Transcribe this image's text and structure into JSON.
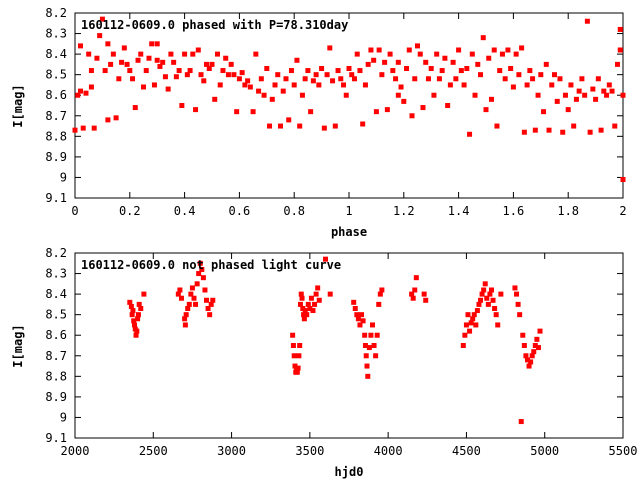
{
  "chart_data": [
    {
      "type": "scatter",
      "title": "160112-0609.0 phased with P=78.310day",
      "xlabel": "phase",
      "ylabel": "I[mag]",
      "xlim": [
        0,
        2
      ],
      "ylim": [
        9.1,
        8.2
      ],
      "y_inverted": true,
      "x_ticks": [
        "0",
        "0.2",
        "0.4",
        "0.6",
        "0.8",
        "1",
        "1.2",
        "1.4",
        "1.6",
        "1.8",
        "2"
      ],
      "x_tick_values": [
        0,
        0.2,
        0.4,
        0.6,
        0.8,
        1.0,
        1.2,
        1.4,
        1.6,
        1.8,
        2.0
      ],
      "y_ticks": [
        "8.2",
        "8.3",
        "8.4",
        "8.5",
        "8.6",
        "8.7",
        "8.8",
        "8.9",
        "9",
        "9.1"
      ],
      "y_tick_values": [
        8.2,
        8.3,
        8.4,
        8.5,
        8.6,
        8.7,
        8.8,
        8.9,
        9.0,
        9.1
      ],
      "marker_color": "#ff0000",
      "points": [
        [
          0.0,
          8.77
        ],
        [
          0.01,
          8.6
        ],
        [
          0.02,
          8.36
        ],
        [
          0.02,
          8.58
        ],
        [
          0.03,
          8.76
        ],
        [
          0.04,
          8.59
        ],
        [
          0.05,
          8.4
        ],
        [
          0.06,
          8.48
        ],
        [
          0.06,
          8.56
        ],
        [
          0.07,
          8.76
        ],
        [
          0.08,
          8.42
        ],
        [
          0.09,
          8.31
        ],
        [
          0.1,
          8.23
        ],
        [
          0.11,
          8.48
        ],
        [
          0.12,
          8.35
        ],
        [
          0.12,
          8.72
        ],
        [
          0.13,
          8.45
        ],
        [
          0.14,
          8.4
        ],
        [
          0.15,
          8.71
        ],
        [
          0.16,
          8.52
        ],
        [
          0.17,
          8.44
        ],
        [
          0.18,
          8.37
        ],
        [
          0.19,
          8.45
        ],
        [
          0.2,
          8.48
        ],
        [
          0.21,
          8.52
        ],
        [
          0.22,
          8.66
        ],
        [
          0.23,
          8.43
        ],
        [
          0.24,
          8.4
        ],
        [
          0.25,
          8.56
        ],
        [
          0.26,
          8.48
        ],
        [
          0.27,
          8.42
        ],
        [
          0.28,
          8.35
        ],
        [
          0.29,
          8.55
        ],
        [
          0.3,
          8.43
        ],
        [
          0.3,
          8.35
        ],
        [
          0.31,
          8.46
        ],
        [
          0.32,
          8.44
        ],
        [
          0.33,
          8.51
        ],
        [
          0.34,
          8.57
        ],
        [
          0.35,
          8.4
        ],
        [
          0.36,
          8.44
        ],
        [
          0.37,
          8.51
        ],
        [
          0.38,
          8.48
        ],
        [
          0.39,
          8.65
        ],
        [
          0.4,
          8.4
        ],
        [
          0.41,
          8.5
        ],
        [
          0.42,
          8.48
        ],
        [
          0.43,
          8.4
        ],
        [
          0.44,
          8.67
        ],
        [
          0.45,
          8.38
        ],
        [
          0.46,
          8.5
        ],
        [
          0.47,
          8.53
        ],
        [
          0.48,
          8.45
        ],
        [
          0.49,
          8.47
        ],
        [
          0.5,
          8.45
        ],
        [
          0.51,
          8.62
        ],
        [
          0.52,
          8.4
        ],
        [
          0.53,
          8.55
        ],
        [
          0.54,
          8.48
        ],
        [
          0.55,
          8.42
        ],
        [
          0.56,
          8.5
        ],
        [
          0.57,
          8.45
        ],
        [
          0.58,
          8.5
        ],
        [
          0.59,
          8.68
        ],
        [
          0.6,
          8.52
        ],
        [
          0.61,
          8.49
        ],
        [
          0.62,
          8.55
        ],
        [
          0.63,
          8.53
        ],
        [
          0.64,
          8.56
        ],
        [
          0.65,
          8.68
        ],
        [
          0.66,
          8.4
        ],
        [
          0.67,
          8.58
        ],
        [
          0.68,
          8.52
        ],
        [
          0.69,
          8.6
        ],
        [
          0.7,
          8.47
        ],
        [
          0.71,
          8.75
        ],
        [
          0.72,
          8.62
        ],
        [
          0.73,
          8.55
        ],
        [
          0.74,
          8.5
        ],
        [
          0.75,
          8.75
        ],
        [
          0.76,
          8.58
        ],
        [
          0.77,
          8.52
        ],
        [
          0.78,
          8.72
        ],
        [
          0.79,
          8.48
        ],
        [
          0.8,
          8.55
        ],
        [
          0.81,
          8.43
        ],
        [
          0.82,
          8.75
        ],
        [
          0.83,
          8.6
        ],
        [
          0.84,
          8.52
        ],
        [
          0.85,
          8.48
        ],
        [
          0.86,
          8.68
        ],
        [
          0.87,
          8.53
        ],
        [
          0.88,
          8.5
        ],
        [
          0.89,
          8.55
        ],
        [
          0.9,
          8.47
        ],
        [
          0.91,
          8.76
        ],
        [
          0.92,
          8.5
        ],
        [
          0.93,
          8.37
        ],
        [
          0.94,
          8.53
        ],
        [
          0.95,
          8.75
        ],
        [
          0.96,
          8.48
        ],
        [
          0.97,
          8.52
        ],
        [
          0.98,
          8.55
        ],
        [
          0.99,
          8.6
        ],
        [
          1.0,
          8.47
        ],
        [
          1.01,
          8.5
        ],
        [
          1.02,
          8.52
        ],
        [
          1.03,
          8.4
        ],
        [
          1.04,
          8.48
        ],
        [
          1.05,
          8.74
        ],
        [
          1.06,
          8.55
        ],
        [
          1.07,
          8.45
        ],
        [
          1.08,
          8.38
        ],
        [
          1.09,
          8.43
        ],
        [
          1.1,
          8.68
        ],
        [
          1.11,
          8.38
        ],
        [
          1.12,
          8.5
        ],
        [
          1.13,
          8.44
        ],
        [
          1.14,
          8.67
        ],
        [
          1.15,
          8.4
        ],
        [
          1.16,
          8.48
        ],
        [
          1.17,
          8.52
        ],
        [
          1.18,
          8.6
        ],
        [
          1.18,
          8.44
        ],
        [
          1.19,
          8.56
        ],
        [
          1.2,
          8.63
        ],
        [
          1.21,
          8.47
        ],
        [
          1.22,
          8.38
        ],
        [
          1.23,
          8.7
        ],
        [
          1.24,
          8.52
        ],
        [
          1.25,
          8.36
        ],
        [
          1.26,
          8.4
        ],
        [
          1.27,
          8.66
        ],
        [
          1.28,
          8.44
        ],
        [
          1.29,
          8.52
        ],
        [
          1.3,
          8.47
        ],
        [
          1.31,
          8.6
        ],
        [
          1.32,
          8.4
        ],
        [
          1.33,
          8.52
        ],
        [
          1.34,
          8.48
        ],
        [
          1.35,
          8.42
        ],
        [
          1.36,
          8.65
        ],
        [
          1.37,
          8.55
        ],
        [
          1.38,
          8.44
        ],
        [
          1.39,
          8.52
        ],
        [
          1.4,
          8.38
        ],
        [
          1.41,
          8.48
        ],
        [
          1.42,
          8.55
        ],
        [
          1.43,
          8.47
        ],
        [
          1.44,
          8.79
        ],
        [
          1.45,
          8.4
        ],
        [
          1.46,
          8.6
        ],
        [
          1.47,
          8.45
        ],
        [
          1.48,
          8.5
        ],
        [
          1.49,
          8.32
        ],
        [
          1.5,
          8.67
        ],
        [
          1.51,
          8.42
        ],
        [
          1.52,
          8.62
        ],
        [
          1.53,
          8.38
        ],
        [
          1.54,
          8.75
        ],
        [
          1.55,
          8.48
        ],
        [
          1.56,
          8.4
        ],
        [
          1.57,
          8.52
        ],
        [
          1.58,
          8.38
        ],
        [
          1.59,
          8.47
        ],
        [
          1.6,
          8.56
        ],
        [
          1.61,
          8.4
        ],
        [
          1.62,
          8.5
        ],
        [
          1.63,
          8.37
        ],
        [
          1.64,
          8.78
        ],
        [
          1.65,
          8.55
        ],
        [
          1.66,
          8.48
        ],
        [
          1.67,
          8.52
        ],
        [
          1.68,
          8.77
        ],
        [
          1.69,
          8.6
        ],
        [
          1.7,
          8.5
        ],
        [
          1.71,
          8.68
        ],
        [
          1.72,
          8.45
        ],
        [
          1.73,
          8.77
        ],
        [
          1.74,
          8.55
        ],
        [
          1.75,
          8.5
        ],
        [
          1.76,
          8.63
        ],
        [
          1.77,
          8.52
        ],
        [
          1.78,
          8.78
        ],
        [
          1.79,
          8.6
        ],
        [
          1.8,
          8.67
        ],
        [
          1.81,
          8.55
        ],
        [
          1.82,
          8.75
        ],
        [
          1.83,
          8.62
        ],
        [
          1.84,
          8.58
        ],
        [
          1.85,
          8.52
        ],
        [
          1.86,
          8.6
        ],
        [
          1.87,
          8.24
        ],
        [
          1.88,
          8.78
        ],
        [
          1.89,
          8.57
        ],
        [
          1.9,
          8.62
        ],
        [
          1.91,
          8.52
        ],
        [
          1.92,
          8.77
        ],
        [
          1.93,
          8.58
        ],
        [
          1.94,
          8.6
        ],
        [
          1.95,
          8.55
        ],
        [
          1.96,
          8.58
        ],
        [
          1.97,
          8.75
        ],
        [
          1.98,
          8.45
        ],
        [
          1.99,
          8.28
        ],
        [
          1.99,
          8.38
        ],
        [
          2.0,
          9.01
        ],
        [
          2.0,
          8.6
        ]
      ]
    },
    {
      "type": "scatter",
      "title": "160112-0609.0 not phased light curve",
      "xlabel": "hjd0",
      "ylabel": "I[mag]",
      "xlim": [
        2000,
        5500
      ],
      "ylim": [
        9.1,
        8.2
      ],
      "y_inverted": true,
      "x_ticks": [
        "2000",
        "2500",
        "3000",
        "3500",
        "4000",
        "4500",
        "5000",
        "5500"
      ],
      "x_tick_values": [
        2000,
        2500,
        3000,
        3500,
        4000,
        4500,
        5000,
        5500
      ],
      "y_ticks": [
        "8.2",
        "8.3",
        "8.4",
        "8.5",
        "8.6",
        "8.7",
        "8.8",
        "8.9",
        "9",
        "9.1"
      ],
      "y_tick_values": [
        8.2,
        8.3,
        8.4,
        8.5,
        8.6,
        8.7,
        8.8,
        8.9,
        9.0,
        9.1
      ],
      "marker_color": "#ff0000",
      "points": [
        [
          2350,
          8.44
        ],
        [
          2360,
          8.46
        ],
        [
          2365,
          8.5
        ],
        [
          2370,
          8.48
        ],
        [
          2375,
          8.53
        ],
        [
          2380,
          8.55
        ],
        [
          2385,
          8.57
        ],
        [
          2390,
          8.6
        ],
        [
          2395,
          8.58
        ],
        [
          2400,
          8.52
        ],
        [
          2405,
          8.5
        ],
        [
          2410,
          8.45
        ],
        [
          2420,
          8.47
        ],
        [
          2440,
          8.4
        ],
        [
          2660,
          8.4
        ],
        [
          2670,
          8.38
        ],
        [
          2680,
          8.42
        ],
        [
          2700,
          8.52
        ],
        [
          2705,
          8.55
        ],
        [
          2710,
          8.5
        ],
        [
          2720,
          8.47
        ],
        [
          2730,
          8.45
        ],
        [
          2740,
          8.4
        ],
        [
          2750,
          8.37
        ],
        [
          2760,
          8.42
        ],
        [
          2770,
          8.45
        ],
        [
          2780,
          8.35
        ],
        [
          2790,
          8.3
        ],
        [
          2800,
          8.25
        ],
        [
          2810,
          8.28
        ],
        [
          2820,
          8.32
        ],
        [
          2830,
          8.38
        ],
        [
          2840,
          8.43
        ],
        [
          2850,
          8.47
        ],
        [
          2860,
          8.5
        ],
        [
          2870,
          8.45
        ],
        [
          2880,
          8.43
        ],
        [
          3390,
          8.6
        ],
        [
          3395,
          8.65
        ],
        [
          3400,
          8.7
        ],
        [
          3405,
          8.75
        ],
        [
          3410,
          8.78
        ],
        [
          3415,
          8.77
        ],
        [
          3420,
          8.78
        ],
        [
          3425,
          8.76
        ],
        [
          3430,
          8.7
        ],
        [
          3435,
          8.65
        ],
        [
          3440,
          8.45
        ],
        [
          3445,
          8.4
        ],
        [
          3450,
          8.42
        ],
        [
          3455,
          8.47
        ],
        [
          3460,
          8.5
        ],
        [
          3465,
          8.52
        ],
        [
          3470,
          8.48
        ],
        [
          3480,
          8.5
        ],
        [
          3490,
          8.45
        ],
        [
          3500,
          8.47
        ],
        [
          3510,
          8.42
        ],
        [
          3520,
          8.48
        ],
        [
          3530,
          8.45
        ],
        [
          3540,
          8.4
        ],
        [
          3550,
          8.37
        ],
        [
          3560,
          8.43
        ],
        [
          3600,
          8.23
        ],
        [
          3630,
          8.4
        ],
        [
          3780,
          8.44
        ],
        [
          3790,
          8.47
        ],
        [
          3800,
          8.5
        ],
        [
          3810,
          8.52
        ],
        [
          3820,
          8.55
        ],
        [
          3830,
          8.5
        ],
        [
          3840,
          8.53
        ],
        [
          3850,
          8.6
        ],
        [
          3855,
          8.65
        ],
        [
          3860,
          8.7
        ],
        [
          3865,
          8.75
        ],
        [
          3870,
          8.8
        ],
        [
          3880,
          8.66
        ],
        [
          3890,
          8.6
        ],
        [
          3900,
          8.55
        ],
        [
          3910,
          8.65
        ],
        [
          3920,
          8.7
        ],
        [
          3930,
          8.6
        ],
        [
          3940,
          8.45
        ],
        [
          3950,
          8.4
        ],
        [
          3960,
          8.38
        ],
        [
          4150,
          8.4
        ],
        [
          4160,
          8.42
        ],
        [
          4170,
          8.38
        ],
        [
          4180,
          8.32
        ],
        [
          4230,
          8.4
        ],
        [
          4240,
          8.43
        ],
        [
          4480,
          8.65
        ],
        [
          4490,
          8.6
        ],
        [
          4500,
          8.55
        ],
        [
          4510,
          8.5
        ],
        [
          4520,
          8.58
        ],
        [
          4530,
          8.54
        ],
        [
          4540,
          8.52
        ],
        [
          4550,
          8.5
        ],
        [
          4560,
          8.55
        ],
        [
          4570,
          8.48
        ],
        [
          4580,
          8.45
        ],
        [
          4590,
          8.43
        ],
        [
          4600,
          8.4
        ],
        [
          4610,
          8.38
        ],
        [
          4620,
          8.35
        ],
        [
          4630,
          8.42
        ],
        [
          4640,
          8.45
        ],
        [
          4650,
          8.4
        ],
        [
          4660,
          8.38
        ],
        [
          4670,
          8.43
        ],
        [
          4680,
          8.47
        ],
        [
          4690,
          8.5
        ],
        [
          4700,
          8.55
        ],
        [
          4720,
          8.4
        ],
        [
          4810,
          8.37
        ],
        [
          4820,
          8.4
        ],
        [
          4830,
          8.45
        ],
        [
          4840,
          8.5
        ],
        [
          4850,
          9.02
        ],
        [
          4860,
          8.6
        ],
        [
          4870,
          8.65
        ],
        [
          4880,
          8.7
        ],
        [
          4890,
          8.72
        ],
        [
          4900,
          8.75
        ],
        [
          4910,
          8.73
        ],
        [
          4920,
          8.7
        ],
        [
          4930,
          8.68
        ],
        [
          4940,
          8.65
        ],
        [
          4950,
          8.62
        ],
        [
          4960,
          8.66
        ],
        [
          4970,
          8.58
        ]
      ]
    }
  ]
}
